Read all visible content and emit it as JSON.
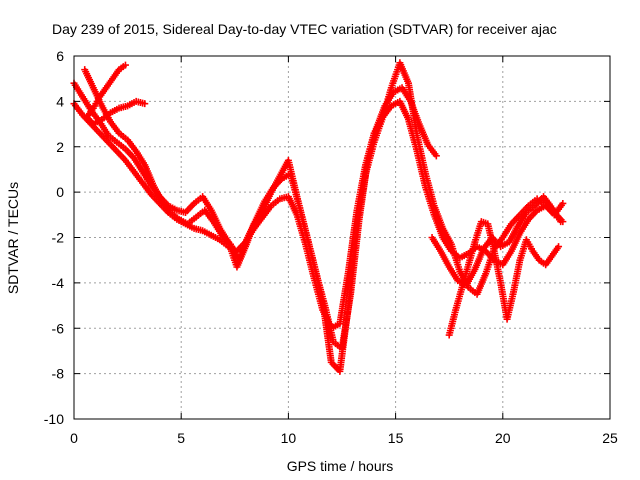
{
  "chart_data": {
    "type": "scatter",
    "title": "Day 239 of 2015, Sidereal Day-to-day VTEC variation (SDTVAR) for receiver ajac",
    "xlabel": "GPS time / hours",
    "ylabel": "SDTVAR / TECUs",
    "xlim": [
      0,
      25
    ],
    "ylim": [
      -10,
      6
    ],
    "xticks": [
      0,
      5,
      10,
      15,
      20,
      25
    ],
    "yticks": [
      -10,
      -8,
      -6,
      -4,
      -2,
      0,
      2,
      4,
      6
    ],
    "grid": true,
    "legend": "none",
    "marker": "plus",
    "color": "#ff0000",
    "series": [
      {
        "x": [
          0.0,
          0.4,
          0.8,
          1.2,
          1.6,
          2.0,
          2.4,
          2.8,
          3.2,
          3.6,
          4.0,
          4.4,
          4.8,
          5.2,
          5.6,
          6.0,
          6.4,
          6.8,
          7.2,
          7.6,
          8.0,
          8.4,
          8.8,
          9.2,
          9.6,
          10.0,
          10.4,
          10.8,
          11.2,
          11.6,
          12.0,
          12.4,
          12.8,
          13.2,
          13.6,
          14.0,
          14.4,
          14.8,
          15.2,
          15.6,
          16.0,
          16.4,
          16.8,
          17.2,
          17.6,
          18.0,
          18.4,
          18.8,
          19.2,
          19.6,
          20.0,
          20.4,
          20.8,
          21.2,
          21.6,
          22.0,
          22.4,
          22.8
        ],
        "y": [
          3.9,
          3.4,
          3.0,
          2.6,
          2.2,
          1.8,
          1.4,
          0.9,
          0.4,
          -0.1,
          -0.5,
          -0.9,
          -1.2,
          -1.4,
          -1.6,
          -1.7,
          -1.9,
          -2.1,
          -2.4,
          -2.6,
          -2.2,
          -1.6,
          -1.1,
          -0.6,
          -0.3,
          -0.2,
          -1.0,
          -2.3,
          -3.8,
          -5.2,
          -6.0,
          -5.8,
          -3.5,
          -0.8,
          1.2,
          2.6,
          3.3,
          3.8,
          4.0,
          3.2,
          1.8,
          0.2,
          -1.0,
          -2.0,
          -2.6,
          -2.9,
          -2.7,
          -2.4,
          -2.6,
          -3.0,
          -3.2,
          -2.6,
          -1.8,
          -1.2,
          -0.8,
          -0.6,
          -0.9,
          -1.3
        ]
      },
      {
        "x": [
          0.0,
          0.4,
          0.8,
          1.2,
          1.6,
          2.0,
          2.4,
          2.8,
          3.2,
          3.6,
          4.0,
          4.4,
          4.8,
          5.2,
          5.6,
          6.0,
          6.4,
          6.8,
          7.2,
          7.6,
          8.0,
          8.4,
          8.8,
          9.2,
          9.6,
          10.0,
          10.4,
          10.8,
          11.2,
          11.6,
          12.0,
          12.4,
          12.8,
          13.2,
          13.6,
          14.0,
          14.4,
          14.8,
          15.2,
          15.6,
          16.0,
          16.4,
          16.8,
          17.2,
          17.6,
          18.0,
          18.4,
          18.8,
          19.2,
          19.6,
          20.0,
          20.4,
          20.8,
          21.2,
          21.6,
          22.0,
          22.4,
          22.8
        ],
        "y": [
          4.8,
          4.2,
          3.6,
          3.1,
          2.5,
          2.2,
          1.9,
          1.5,
          0.9,
          0.3,
          -0.2,
          -0.6,
          -0.8,
          -0.9,
          -0.5,
          -0.2,
          -0.8,
          -1.6,
          -2.2,
          -3.3,
          -2.4,
          -1.4,
          -0.8,
          0.0,
          0.7,
          1.4,
          -0.2,
          -1.7,
          -3.2,
          -4.8,
          -7.5,
          -7.9,
          -5.0,
          -1.4,
          0.8,
          2.2,
          3.3,
          4.6,
          5.7,
          4.8,
          2.5,
          0.8,
          -0.6,
          -1.6,
          -2.3,
          -3.5,
          -4.2,
          -4.5,
          -3.6,
          -2.5,
          -2.0,
          -1.4,
          -1.0,
          -0.6,
          -0.3,
          -0.6,
          -1.0,
          -0.5
        ]
      },
      {
        "x": [
          0.5,
          0.9,
          1.3,
          1.7,
          2.1,
          2.5,
          2.9,
          3.3,
          3.7,
          4.1,
          4.5,
          4.9,
          5.3,
          5.7,
          6.1,
          6.5,
          6.9,
          7.3,
          7.7,
          8.1,
          8.5,
          8.9,
          9.3,
          9.7,
          10.1,
          10.5,
          10.9,
          11.3,
          11.7,
          12.1,
          12.5,
          12.9,
          13.3,
          13.7,
          14.1,
          14.5,
          14.9,
          15.3,
          15.7,
          16.1,
          16.5,
          16.9
        ],
        "y": [
          5.4,
          4.6,
          3.8,
          3.1,
          2.6,
          2.3,
          1.8,
          1.2,
          0.3,
          -0.4,
          -0.9,
          -1.2,
          -1.4,
          -1.1,
          -0.8,
          -1.3,
          -1.9,
          -2.3,
          -3.0,
          -2.0,
          -1.2,
          -0.4,
          0.2,
          0.6,
          0.8,
          -0.6,
          -2.1,
          -3.6,
          -5.0,
          -6.6,
          -6.9,
          -4.5,
          -1.2,
          1.4,
          2.8,
          3.8,
          4.4,
          4.6,
          4.0,
          3.0,
          2.1,
          1.6
        ]
      },
      {
        "x": [
          2.4,
          2.1,
          1.8,
          1.5,
          1.2,
          0.9,
          0.6,
          0.9,
          1.3,
          1.7,
          2.1,
          2.5,
          2.9,
          3.3
        ],
        "y": [
          5.6,
          5.4,
          5.0,
          4.6,
          4.2,
          3.7,
          3.3,
          3.0,
          3.2,
          3.5,
          3.7,
          3.8,
          4.0,
          3.9
        ]
      },
      {
        "x": [
          17.5,
          17.8,
          18.1,
          18.4,
          18.7,
          19.0,
          19.3,
          19.6,
          19.9,
          20.2,
          20.5,
          20.8,
          21.1,
          21.4,
          21.7,
          22.0,
          22.3,
          22.6
        ],
        "y": [
          -6.3,
          -5.2,
          -4.2,
          -3.2,
          -2.2,
          -1.3,
          -1.4,
          -2.6,
          -4.0,
          -5.6,
          -4.4,
          -3.0,
          -2.1,
          -2.6,
          -3.0,
          -3.2,
          -2.8,
          -2.4
        ]
      },
      {
        "x": [
          16.7,
          17.1,
          17.5,
          17.9,
          18.3,
          18.7,
          19.1,
          19.5,
          19.9,
          20.3,
          20.7,
          21.1,
          21.5,
          21.9,
          22.3,
          22.7
        ],
        "y": [
          -2.0,
          -2.6,
          -3.3,
          -3.9,
          -4.1,
          -3.4,
          -2.5,
          -2.0,
          -2.4,
          -2.2,
          -1.5,
          -0.9,
          -0.6,
          -0.2,
          -0.7,
          -1.3
        ]
      }
    ]
  }
}
